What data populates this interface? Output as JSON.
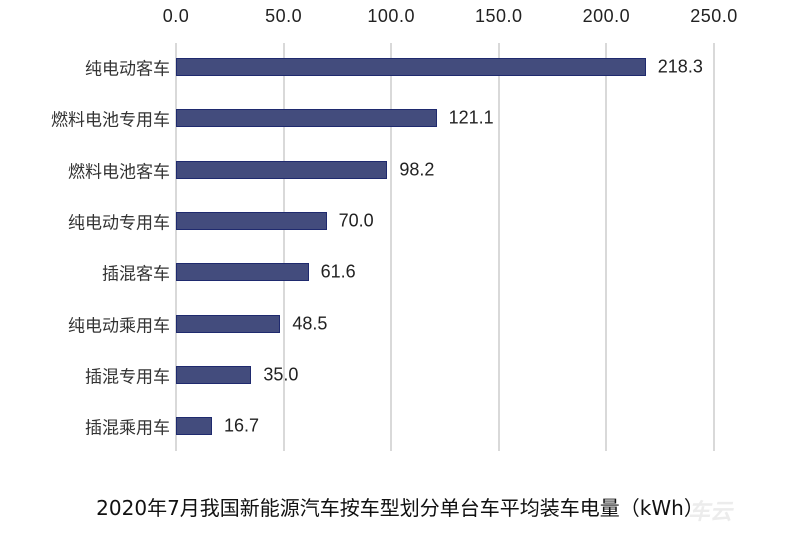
{
  "chart_data": {
    "type": "bar",
    "orientation": "horizontal",
    "title": "2020年7月我国新能源汽车按车型划分单台车平均装车电量（kWh）",
    "xlabel": "",
    "ylabel": "",
    "xlim": [
      0,
      250
    ],
    "x_ticks": [
      "0.0",
      "50.0",
      "100.0",
      "150.0",
      "200.0",
      "250.0"
    ],
    "x_tick_values": [
      0,
      50,
      100,
      150,
      200,
      250
    ],
    "x_axis_position": "top",
    "grid": true,
    "legend": null,
    "categories": [
      "纯电动客车",
      "燃料电池专用车",
      "燃料电池客车",
      "纯电动专用车",
      "插混客车",
      "纯电动乘用车",
      "插混专用车",
      "插混乘用车"
    ],
    "values": [
      218.3,
      121.1,
      98.2,
      70.0,
      61.6,
      48.5,
      35.0,
      16.7
    ],
    "value_labels": [
      "218.3",
      "121.1",
      "98.2",
      "70.0",
      "61.6",
      "48.5",
      "35.0",
      "16.7"
    ],
    "bar_color": "#434c7d"
  },
  "colors": {
    "bar": "#434c7d",
    "bar_border": "#1f2a6e",
    "grid": "#d9d9d9"
  },
  "watermark": "车云"
}
